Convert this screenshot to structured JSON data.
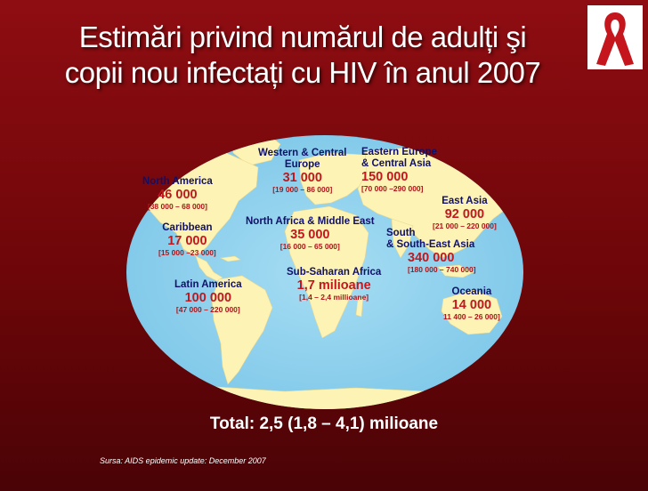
{
  "title": {
    "line1": "Estimări privind numărul de adulți şi",
    "line2": "copii nou infectați cu HIV în anul 2007"
  },
  "regions": [
    {
      "name": "North America",
      "value": "46 000",
      "range": "[38 000 – 68 000]"
    },
    {
      "name": "Caribbean",
      "value": "17 000",
      "range": "[15 000 –23 000]"
    },
    {
      "name": "Latin America",
      "value": "100 000",
      "range": "[47 000 – 220 000]"
    },
    {
      "name": "Western & Central Europe",
      "value": "31 000",
      "range": "[19 000 – 86 000]"
    },
    {
      "name": "Eastern Europe & Central Asia",
      "value": "150 000",
      "range": "[70 000 –290 000]"
    },
    {
      "name": "East Asia",
      "value": "92 000",
      "range": "[21 000 – 220 000]"
    },
    {
      "name": "North Africa & Middle East",
      "value": "35 000",
      "range": "[16 000 – 65 000]"
    },
    {
      "name": "South & South-East Asia",
      "value": "340 000",
      "range": "[180 000 – 740 000]"
    },
    {
      "name": "Sub-Saharan Africa",
      "value": "1,7 milioane",
      "range": "[1,4 – 2,4 millioane]"
    },
    {
      "name": "Oceania",
      "value": "14 000",
      "range": "11 400 – 26 000]"
    }
  ],
  "region_line1": {
    "western_europe": "Western & Central",
    "western_europe_2": "Europe",
    "eastern_europe": "Eastern Europe",
    "eastern_europe_2": "& Central Asia",
    "south_asia": "South",
    "south_asia_2": "& South-East Asia"
  },
  "total": "Total: 2,5 (1,8 – 4,1) milioane",
  "source": "Sursa: AIDS epidemic update: December 2007",
  "colors": {
    "background": "#7a0a0d",
    "ocean": "#8fd2ee",
    "land": "#fdf3b5",
    "region_text": "#10106a",
    "value_text": "#c0181e",
    "ribbon": "#c4161c"
  }
}
